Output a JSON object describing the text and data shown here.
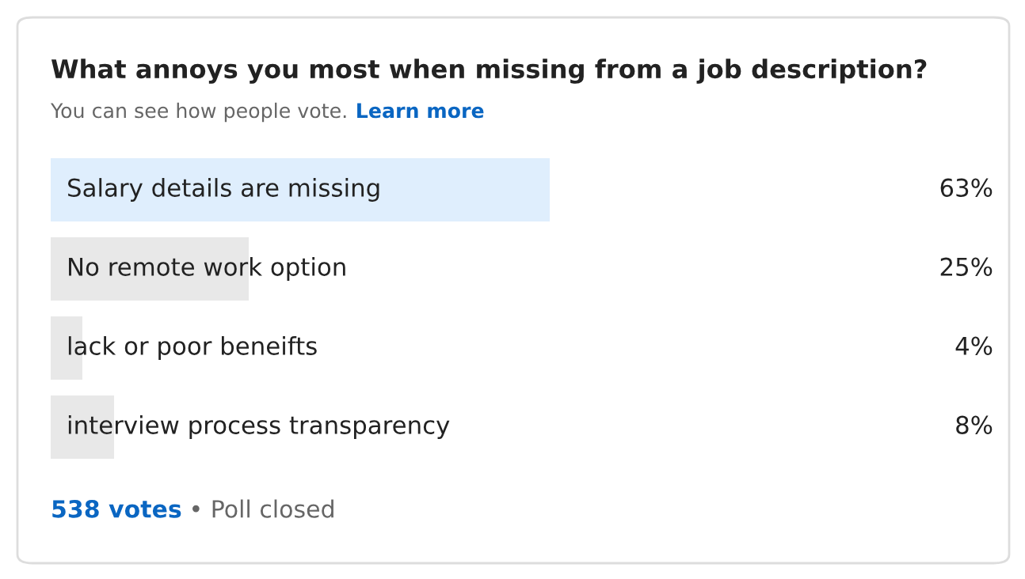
{
  "chart_data": {
    "type": "bar",
    "orientation": "horizontal",
    "title": "What annoys you most when missing from a job description?",
    "categories": [
      "Salary details are missing",
      "No remote work option",
      "lack or poor beneifts",
      "interview process transparency"
    ],
    "values": [
      63,
      25,
      4,
      8
    ],
    "colors": [
      "#dfeefd",
      "#e8e8e8",
      "#e8e8e8",
      "#e8e8e8"
    ],
    "value_labels": [
      "63%",
      "25%",
      "4%",
      "8%"
    ],
    "annotations": [
      "You can see how people vote.",
      "Learn more",
      "538 votes",
      "• Poll closed"
    ],
    "legend": false
  }
}
